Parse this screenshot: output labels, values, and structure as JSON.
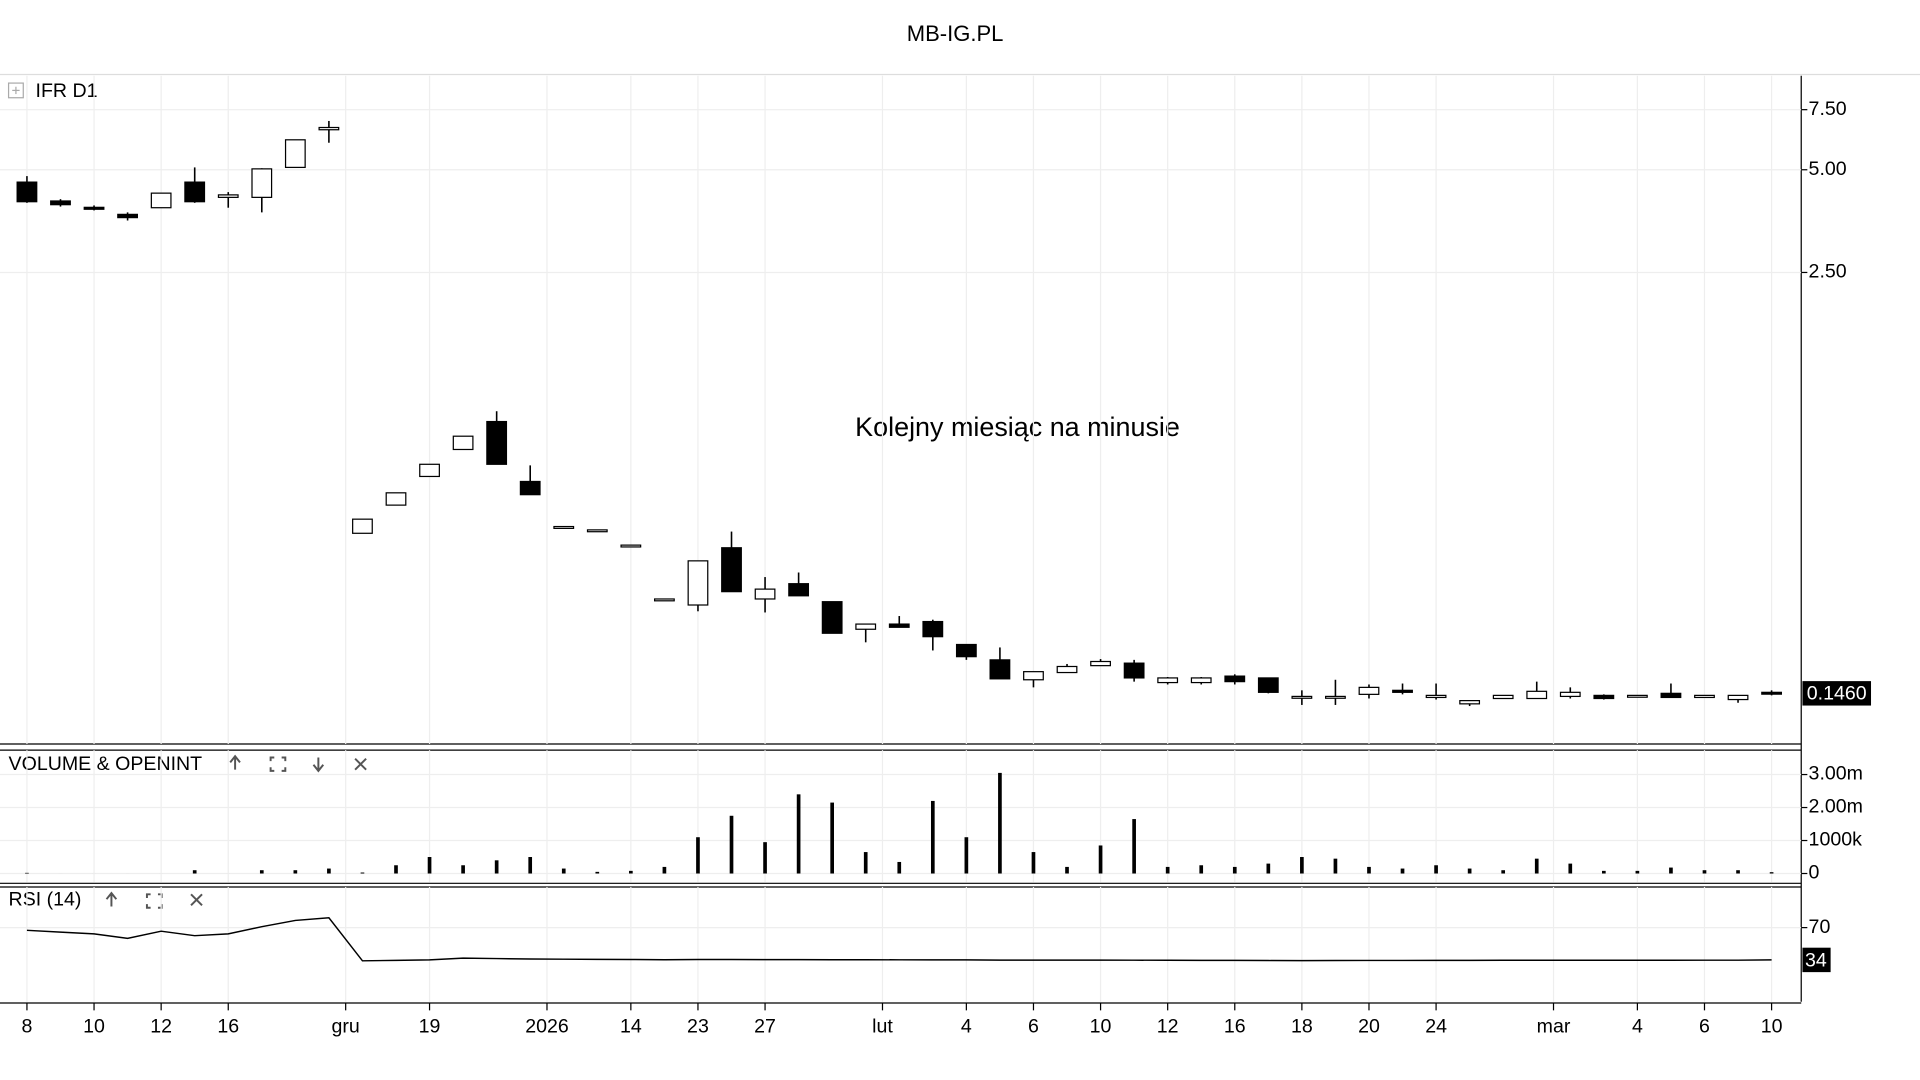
{
  "title": "MB-IG.PL",
  "chart_data": [
    {
      "type": "candlestick",
      "title": "IFR D1",
      "annotation": "Kolejny miesiąc na minusie",
      "annotation_color": "#b41ee6",
      "log_scale": true,
      "grid": true,
      "up_color": "#ffffff",
      "down_color": "#000000",
      "ylim": [
        0.1037,
        9.43
      ],
      "yticks": [
        {
          "value": 7.5,
          "label": "7.50"
        },
        {
          "value": 5,
          "label": "5.00"
        },
        {
          "value": 2.5,
          "label": "2.50"
        }
      ],
      "open": [
        4.6,
        4.05,
        3.88,
        3.7,
        3.87,
        4.6,
        4.15,
        4.15,
        5.08,
        6.55,
        0.43,
        0.52,
        0.631,
        0.757,
        0.914,
        0.61,
        0.45,
        0.44,
        0.397,
        0.276,
        0.265,
        0.39,
        0.276,
        0.306,
        0.271,
        0.225,
        0.233,
        0.237,
        0.203,
        0.183,
        0.16,
        0.168,
        0.176,
        0.179,
        0.157,
        0.157,
        0.164,
        0.162,
        0.143,
        0.143,
        0.145,
        0.149,
        0.142,
        0.136,
        0.141,
        0.141,
        0.143,
        0.144,
        0.144,
        0.146,
        0.142,
        0.14,
        0.147
      ],
      "high": [
        4.79,
        4.1,
        3.93,
        3.75,
        4.27,
        5.08,
        4.3,
        5.05,
        6.12,
        6.95,
        0.473,
        0.565,
        0.685,
        0.828,
        0.98,
        0.68,
        0.45,
        0.44,
        0.397,
        0.276,
        0.357,
        0.435,
        0.32,
        0.33,
        0.271,
        0.233,
        0.246,
        0.24,
        0.203,
        0.199,
        0.169,
        0.178,
        0.184,
        0.183,
        0.163,
        0.163,
        0.166,
        0.162,
        0.149,
        0.16,
        0.155,
        0.156,
        0.156,
        0.139,
        0.144,
        0.158,
        0.152,
        0.145,
        0.144,
        0.156,
        0.144,
        0.144,
        0.149
      ],
      "low": [
        4.0,
        3.9,
        3.8,
        3.55,
        3.87,
        4.0,
        3.87,
        3.75,
        5.08,
        6.0,
        0.43,
        0.52,
        0.631,
        0.757,
        0.685,
        0.558,
        0.45,
        0.44,
        0.397,
        0.276,
        0.254,
        0.29,
        0.252,
        0.282,
        0.219,
        0.206,
        0.228,
        0.195,
        0.183,
        0.161,
        0.152,
        0.168,
        0.176,
        0.158,
        0.155,
        0.155,
        0.155,
        0.146,
        0.135,
        0.135,
        0.141,
        0.145,
        0.14,
        0.134,
        0.141,
        0.141,
        0.141,
        0.14,
        0.144,
        0.142,
        0.142,
        0.137,
        0.144
      ],
      "close": [
        4.03,
        3.95,
        3.83,
        3.62,
        4.27,
        4.03,
        4.22,
        5.03,
        6.12,
        6.65,
        0.473,
        0.565,
        0.685,
        0.828,
        0.685,
        0.558,
        0.45,
        0.44,
        0.397,
        0.276,
        0.357,
        0.29,
        0.295,
        0.282,
        0.219,
        0.233,
        0.228,
        0.214,
        0.187,
        0.161,
        0.169,
        0.175,
        0.181,
        0.162,
        0.162,
        0.162,
        0.158,
        0.147,
        0.143,
        0.143,
        0.152,
        0.147,
        0.144,
        0.139,
        0.144,
        0.148,
        0.147,
        0.141,
        0.144,
        0.142,
        0.144,
        0.144,
        0.146
      ],
      "last_label": "0.1460"
    },
    {
      "type": "bar",
      "title": "VOLUME & OPENINT",
      "color": "#000000",
      "ylim": [
        -260000,
        3740000
      ],
      "yticks": [
        {
          "value": 3000000,
          "label": "3.00m"
        },
        {
          "value": 2000000,
          "label": "2.00m"
        },
        {
          "value": 1000000,
          "label": "1000k"
        },
        0
      ],
      "values": [
        20000,
        0,
        0,
        0,
        0,
        100000,
        0,
        100000,
        100000,
        150000,
        30000,
        250000,
        500000,
        250000,
        400000,
        500000,
        150000,
        50000,
        80000,
        200000,
        1100000,
        1750000,
        950000,
        2400000,
        2150000,
        650000,
        350000,
        2200000,
        1100000,
        3050000,
        650000,
        200000,
        850000,
        1650000,
        200000,
        250000,
        200000,
        300000,
        500000,
        450000,
        200000,
        150000,
        250000,
        150000,
        100000,
        450000,
        300000,
        80000,
        80000,
        180000,
        100000,
        100000,
        40000
      ]
    },
    {
      "type": "line",
      "title": "RSI (14)",
      "color": "#000000",
      "ylim": [
        -12.7,
        115.3
      ],
      "yticks": [
        70
      ],
      "values": [
        67,
        65,
        63,
        58,
        66,
        61,
        63,
        71,
        78,
        81,
        33,
        33.5,
        34,
        36,
        35.5,
        35,
        34.8,
        34.6,
        34.5,
        34.2,
        34.5,
        34.5,
        34.3,
        34.3,
        34.2,
        34.2,
        34.1,
        34,
        34,
        33.8,
        33.8,
        33.8,
        33.8,
        33.7,
        33.6,
        33.5,
        33.5,
        33.3,
        33.2,
        33.3,
        33.4,
        33.4,
        33.5,
        33.5,
        33.6,
        33.6,
        33.6,
        33.6,
        33.6,
        33.6,
        33.7,
        33.7,
        34
      ],
      "xticks": [
        {
          "value": 0,
          "label": "8"
        },
        {
          "value": 2,
          "label": "10"
        },
        {
          "value": 4,
          "label": "12"
        },
        {
          "value": 6,
          "label": "16"
        },
        {
          "value": 9.5,
          "label": "gru"
        },
        {
          "value": 12,
          "label": "19"
        },
        {
          "value": 15.5,
          "label": "2026"
        },
        {
          "value": 18,
          "label": "14"
        },
        {
          "value": 20,
          "label": "23"
        },
        {
          "value": 22,
          "label": "27"
        },
        {
          "value": 25.5,
          "label": "lut"
        },
        {
          "value": 28,
          "label": "4"
        },
        {
          "value": 30,
          "label": "6"
        },
        {
          "value": 32,
          "label": "10"
        },
        {
          "value": 34,
          "label": "12"
        },
        {
          "value": 36,
          "label": "16"
        },
        {
          "value": 38,
          "label": "18"
        },
        {
          "value": 40,
          "label": "20"
        },
        {
          "value": 42,
          "label": "24"
        },
        {
          "value": 45.5,
          "label": "mar"
        },
        {
          "value": 48,
          "label": "4"
        },
        {
          "value": 50,
          "label": "6"
        },
        {
          "value": 52,
          "label": "10"
        }
      ]
    }
  ]
}
